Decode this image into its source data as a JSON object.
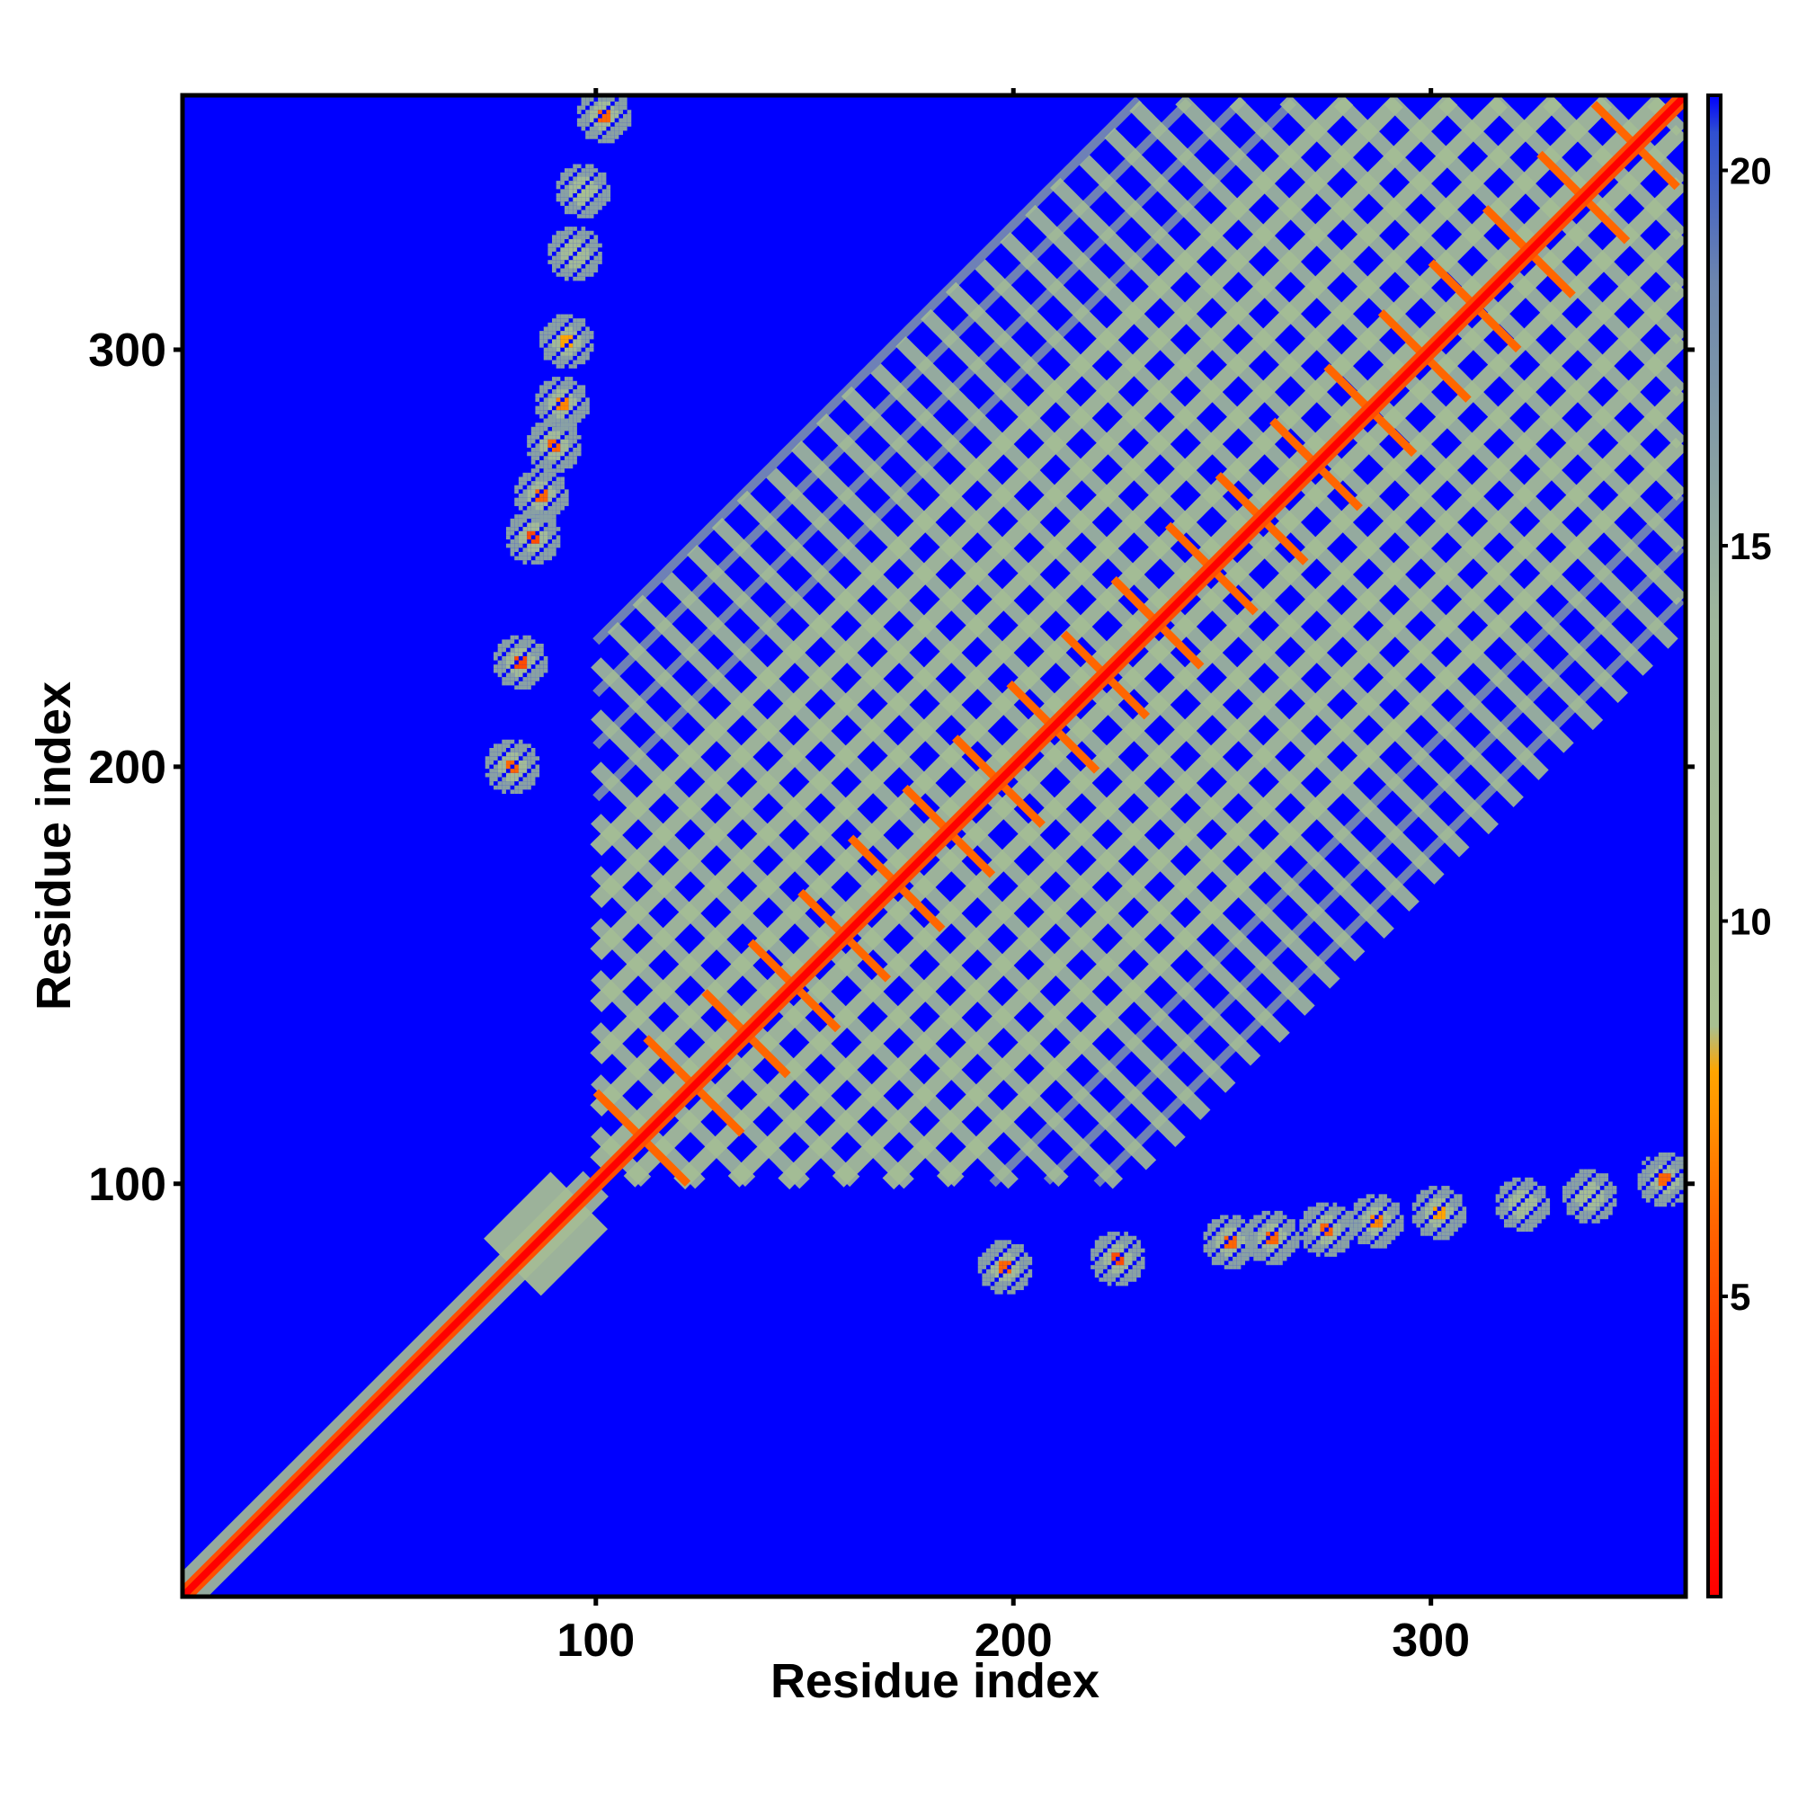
{
  "chart_data": {
    "type": "heatmap",
    "title": "",
    "xlabel": "Residue index",
    "ylabel": "Residue index",
    "xlim": [
      1,
      361
    ],
    "ylim": [
      1,
      361
    ],
    "x_ticks": [
      100,
      200,
      300
    ],
    "y_ticks": [
      100,
      200,
      300
    ],
    "colorbar": {
      "ticks": [
        5,
        10,
        15,
        20
      ],
      "range": [
        1,
        21
      ],
      "stops": [
        {
          "value": 1,
          "color": "#ff0000"
        },
        {
          "value": 4,
          "color": "#ff3300"
        },
        {
          "value": 6,
          "color": "#ff6600"
        },
        {
          "value": 8,
          "color": "#ffa500"
        },
        {
          "value": 8.6,
          "color": "#a8c090"
        },
        {
          "value": 14,
          "color": "#9fb79c"
        },
        {
          "value": 18.5,
          "color": "#6d86ae"
        },
        {
          "value": 20.5,
          "color": "#3050d0"
        },
        {
          "value": 21,
          "color": "#0000ff"
        }
      ]
    },
    "background_value": 21,
    "diagonal_value": 1,
    "band_value": 11,
    "structure": {
      "diagonal": {
        "from": 1,
        "to": 361
      },
      "block_region": {
        "from": 100,
        "to": 360
      },
      "block_spacing": 12.5,
      "antiparallel_contacts": [
        {
          "i": 100,
          "j": 122
        },
        {
          "i": 112,
          "j": 135
        },
        {
          "i": 126,
          "j": 146
        },
        {
          "i": 137,
          "j": 158
        },
        {
          "i": 149,
          "j": 170
        },
        {
          "i": 161,
          "j": 183
        },
        {
          "i": 174,
          "j": 195
        },
        {
          "i": 186,
          "j": 207
        },
        {
          "i": 199,
          "j": 220
        },
        {
          "i": 212,
          "j": 232
        },
        {
          "i": 224,
          "j": 245
        },
        {
          "i": 237,
          "j": 258
        },
        {
          "i": 249,
          "j": 270
        },
        {
          "i": 262,
          "j": 283
        },
        {
          "i": 275,
          "j": 296
        },
        {
          "i": 288,
          "j": 309
        },
        {
          "i": 300,
          "j": 321
        },
        {
          "i": 313,
          "j": 334
        },
        {
          "i": 326,
          "j": 347
        },
        {
          "i": 339,
          "j": 359
        }
      ],
      "offdiagonal_clusters": [
        {
          "x": 80,
          "y": 200,
          "value": 6
        },
        {
          "x": 82,
          "y": 225,
          "value": 5
        },
        {
          "x": 85,
          "y": 255,
          "value": 5
        },
        {
          "x": 87,
          "y": 265,
          "value": 6
        },
        {
          "x": 90,
          "y": 277,
          "value": 6
        },
        {
          "x": 92,
          "y": 287,
          "value": 7
        },
        {
          "x": 93,
          "y": 302,
          "value": 8
        },
        {
          "x": 95,
          "y": 323,
          "value": 10
        },
        {
          "x": 97,
          "y": 338,
          "value": 9
        },
        {
          "x": 102,
          "y": 356,
          "value": 6
        },
        {
          "x": 198,
          "y": 80,
          "value": 6
        },
        {
          "x": 225,
          "y": 82,
          "value": 5
        },
        {
          "x": 252,
          "y": 86,
          "value": 6
        },
        {
          "x": 262,
          "y": 87,
          "value": 6
        },
        {
          "x": 275,
          "y": 89,
          "value": 6
        },
        {
          "x": 287,
          "y": 91,
          "value": 7
        },
        {
          "x": 302,
          "y": 93,
          "value": 8
        },
        {
          "x": 322,
          "y": 95,
          "value": 9
        },
        {
          "x": 338,
          "y": 97,
          "value": 10
        },
        {
          "x": 356,
          "y": 101,
          "value": 6
        }
      ]
    }
  }
}
